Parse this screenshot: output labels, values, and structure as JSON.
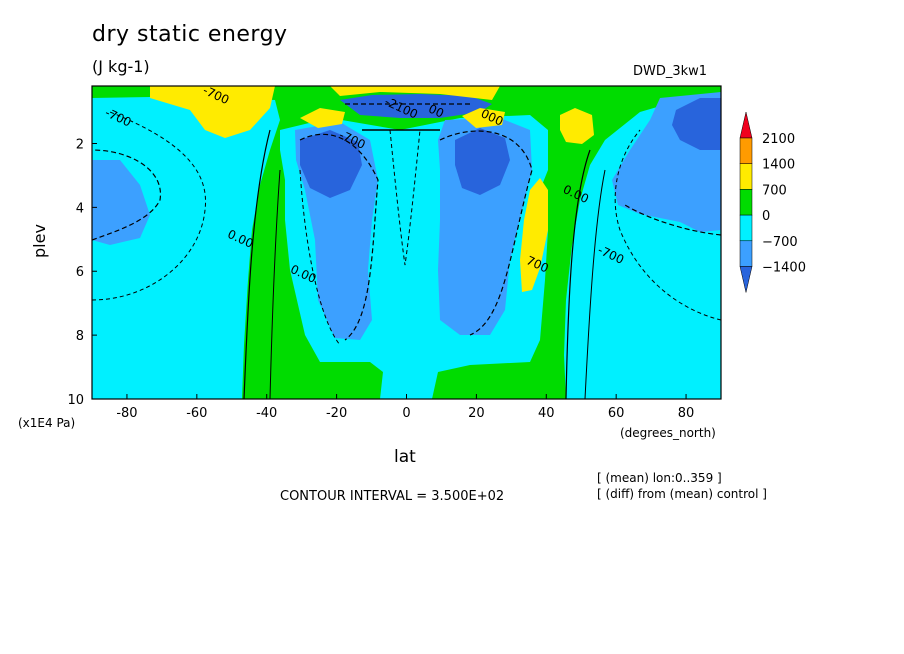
{
  "chart_data": {
    "type": "heatmap",
    "title": "dry static energy",
    "units": "(J kg-1)",
    "run_label": "DWD_3kw1",
    "xlabel": "lat",
    "xunit": "(degrees_north)",
    "ylabel": "plev",
    "yunit": "(x1E4 Pa)",
    "xlim": [
      -90,
      90
    ],
    "ylim": [
      10,
      0.2
    ],
    "xticks": [
      -80,
      -60,
      -40,
      -20,
      0,
      20,
      40,
      60,
      80
    ],
    "yticks": [
      2,
      4,
      6,
      8,
      10
    ],
    "contour_interval": "CONTOUR INTERVAL = 3.500E+02",
    "notes": [
      "[ (mean) lon:0..359 ]",
      "[ (diff) from (mean) control ]"
    ],
    "colorbar": {
      "labels": [
        "2100",
        "1400",
        "700",
        "0",
        "−700",
        "−1400"
      ],
      "colors": [
        "#f0001e",
        "#ff9b00",
        "#ffeb00",
        "#00dc00",
        "#00f0ff",
        "#3ca0ff",
        "#2864dc"
      ]
    },
    "contour_labels": [
      {
        "text": "-700",
        "lon": -55,
        "p": 0.6
      },
      {
        "text": "-700",
        "lon": -83,
        "p": 1.3
      },
      {
        "text": "0.00",
        "lon": -48,
        "p": 5.1
      },
      {
        "text": "0.00",
        "lon": -30,
        "p": 6.2
      },
      {
        "text": "-700",
        "lon": -16,
        "p": 2.0
      },
      {
        "text": "-2100",
        "lon": -2,
        "p": 1.0
      },
      {
        "text": "00",
        "lon": 8,
        "p": 1.1
      },
      {
        "text": "000",
        "lon": 24,
        "p": 1.3
      },
      {
        "text": "700",
        "lon": 37,
        "p": 5.9
      },
      {
        "text": "0.00",
        "lon": 48,
        "p": 3.7
      },
      {
        "text": "-700",
        "lon": 58,
        "p": 5.6
      }
    ]
  }
}
